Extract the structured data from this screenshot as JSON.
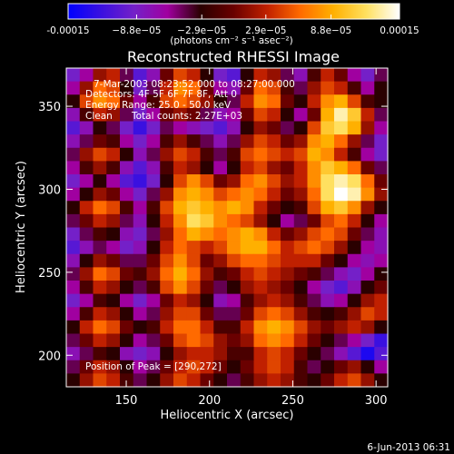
{
  "chart_data": {
    "type": "heatmap",
    "title": "Reconstructed RHESSI Image",
    "xlabel": "Heliocentric X (arcsec)",
    "ylabel": "Heliocentric Y (arcsec)",
    "xlim": [
      114,
      307
    ],
    "ylim": [
      181,
      373
    ],
    "x_ticks": [
      150,
      200,
      250,
      300
    ],
    "y_ticks": [
      200,
      250,
      300,
      350
    ],
    "colorbar": {
      "range": [
        -0.00015,
        0.00015
      ],
      "tick_values": [
        -0.00015,
        -8.8e-05,
        -2.9e-05,
        2.9e-05,
        8.8e-05,
        0.00015
      ],
      "tick_labels": [
        "-0.00015",
        "−8.8e−05",
        "−2.9e−05",
        "2.9e−05",
        "8.8e−05",
        "0.00015"
      ],
      "units": "(photons cm⁻² s⁻¹ asec⁻²)",
      "stops": [
        "#0000ff",
        "#3a10e0",
        "#7420c8",
        "#a000a0",
        "#2a0000",
        "#6a0000",
        "#c02000",
        "#ff6a00",
        "#ffb000",
        "#ffe060",
        "#ffffff"
      ]
    },
    "annotations": {
      "time": "7-Mar-2003 08:23:52.000 to 08:27:00.000",
      "detectors": "Detectors: 4F 5F 6F 7F 8F, Att 0",
      "energy": "Energy Range: 25.0 - 50.0 keV",
      "method": "Clean",
      "counts": "Total counts: 2.27E+03",
      "peak": "Position of Peak = [290,272]"
    },
    "peak_position": [
      290,
      272
    ],
    "grid_size": [
      24,
      24
    ],
    "values_scale": "fraction of colorbar range (-1 to 1)",
    "values": [
      [
        -0.6,
        -0.4,
        0.1,
        0.2,
        -0.3,
        -0.7,
        -0.5,
        0.0,
        0.3,
        0.2,
        -0.2,
        -0.6,
        -0.7,
        -0.2,
        0.2,
        0.1,
        -0.3,
        -0.5,
        -0.1,
        0.2,
        0.0,
        -0.4,
        -0.6,
        -0.3
      ],
      [
        -0.4,
        0.1,
        0.4,
        0.3,
        -0.2,
        -0.6,
        -0.3,
        0.2,
        0.5,
        0.4,
        0.0,
        -0.4,
        -0.5,
        0.0,
        0.4,
        0.3,
        -0.1,
        -0.3,
        0.1,
        0.3,
        0.2,
        -0.1,
        -0.4,
        -0.2
      ],
      [
        -0.2,
        0.3,
        0.5,
        0.4,
        0.0,
        -0.4,
        -0.1,
        0.3,
        0.4,
        0.3,
        0.1,
        -0.2,
        -0.3,
        0.2,
        0.5,
        0.4,
        0.0,
        -0.2,
        0.2,
        0.5,
        0.6,
        0.3,
        -0.1,
        -0.2
      ],
      [
        -0.5,
        -0.1,
        0.2,
        0.1,
        -0.3,
        -0.6,
        -0.4,
        0.0,
        0.1,
        0.0,
        -0.3,
        -0.5,
        -0.4,
        0.0,
        0.3,
        0.2,
        -0.2,
        -0.4,
        0.0,
        0.6,
        0.9,
        0.7,
        0.2,
        -0.3
      ],
      [
        -0.7,
        -0.5,
        -0.2,
        -0.3,
        -0.6,
        -0.8,
        -0.6,
        -0.3,
        -0.4,
        -0.5,
        -0.6,
        -0.7,
        -0.5,
        -0.2,
        0.1,
        0.0,
        -0.3,
        -0.2,
        0.3,
        0.7,
        0.8,
        0.6,
        0.1,
        -0.4
      ],
      [
        -0.5,
        -0.3,
        0.0,
        -0.1,
        -0.4,
        -0.6,
        -0.4,
        -0.1,
        0.1,
        -0.1,
        -0.3,
        -0.5,
        -0.3,
        0.1,
        0.3,
        0.2,
        0.0,
        0.1,
        0.5,
        0.6,
        0.4,
        0.1,
        -0.3,
        -0.6
      ],
      [
        -0.3,
        0.1,
        0.3,
        0.2,
        -0.2,
        -0.5,
        -0.3,
        0.1,
        0.3,
        0.2,
        -0.1,
        -0.3,
        -0.1,
        0.3,
        0.4,
        0.3,
        0.2,
        0.3,
        0.6,
        0.5,
        0.2,
        -0.1,
        -0.4,
        -0.6
      ],
      [
        -0.4,
        -0.1,
        0.1,
        -0.1,
        -0.5,
        -0.7,
        -0.5,
        -0.1,
        0.2,
        0.1,
        -0.2,
        -0.4,
        -0.2,
        0.2,
        0.3,
        0.1,
        0.0,
        0.2,
        0.5,
        0.7,
        0.6,
        0.4,
        0.0,
        -0.3
      ],
      [
        -0.6,
        -0.4,
        -0.2,
        -0.4,
        -0.7,
        -0.8,
        -0.6,
        -0.2,
        0.3,
        0.5,
        0.3,
        0.0,
        0.1,
        0.4,
        0.5,
        0.3,
        0.1,
        0.2,
        0.5,
        0.8,
        0.9,
        0.8,
        0.4,
        0.0
      ],
      [
        -0.4,
        -0.2,
        0.1,
        0.0,
        -0.4,
        -0.6,
        -0.3,
        0.1,
        0.5,
        0.6,
        0.5,
        0.3,
        0.4,
        0.5,
        0.4,
        0.2,
        0.0,
        0.1,
        0.4,
        0.8,
        1.0,
        0.9,
        0.5,
        0.1
      ],
      [
        -0.2,
        0.2,
        0.4,
        0.3,
        -0.1,
        -0.4,
        -0.1,
        0.3,
        0.6,
        0.7,
        0.6,
        0.5,
        0.6,
        0.5,
        0.2,
        0.0,
        -0.2,
        -0.1,
        0.3,
        0.6,
        0.7,
        0.5,
        0.1,
        -0.2
      ],
      [
        -0.3,
        0.0,
        0.2,
        0.1,
        -0.3,
        -0.5,
        -0.2,
        0.2,
        0.5,
        0.8,
        0.7,
        0.5,
        0.4,
        0.3,
        0.1,
        -0.2,
        -0.4,
        -0.3,
        0.0,
        0.3,
        0.4,
        0.2,
        -0.2,
        -0.4
      ],
      [
        -0.6,
        -0.3,
        -0.1,
        -0.2,
        -0.5,
        -0.6,
        -0.3,
        0.1,
        0.4,
        0.6,
        0.5,
        0.4,
        0.5,
        0.6,
        0.5,
        0.2,
        0.0,
        0.1,
        0.3,
        0.4,
        0.3,
        0.0,
        -0.3,
        -0.5
      ],
      [
        -0.7,
        -0.5,
        -0.3,
        -0.4,
        -0.6,
        -0.5,
        -0.2,
        0.2,
        0.4,
        0.3,
        0.2,
        0.3,
        0.5,
        0.6,
        0.6,
        0.4,
        0.2,
        0.3,
        0.4,
        0.3,
        0.1,
        -0.2,
        -0.4,
        -0.5
      ],
      [
        -0.5,
        -0.2,
        0.1,
        0.0,
        -0.3,
        -0.3,
        0.0,
        0.3,
        0.5,
        0.3,
        0.0,
        0.1,
        0.3,
        0.4,
        0.4,
        0.3,
        0.2,
        0.2,
        0.2,
        0.0,
        -0.2,
        -0.4,
        -0.5,
        -0.4
      ],
      [
        -0.3,
        0.1,
        0.4,
        0.3,
        0.0,
        -0.1,
        0.1,
        0.4,
        0.6,
        0.4,
        0.1,
        -0.1,
        0.0,
        0.2,
        0.3,
        0.2,
        0.1,
        0.0,
        -0.1,
        -0.3,
        -0.5,
        -0.6,
        -0.4,
        -0.2
      ],
      [
        -0.4,
        -0.1,
        0.2,
        0.1,
        -0.2,
        -0.3,
        -0.1,
        0.3,
        0.5,
        0.3,
        0.0,
        -0.3,
        -0.2,
        0.1,
        0.2,
        0.1,
        0.0,
        -0.2,
        -0.4,
        -0.6,
        -0.7,
        -0.5,
        -0.2,
        0.0
      ],
      [
        -0.6,
        -0.4,
        -0.1,
        -0.2,
        -0.4,
        -0.6,
        -0.4,
        0.0,
        0.2,
        0.1,
        -0.2,
        -0.5,
        -0.4,
        -0.1,
        0.1,
        0.2,
        0.1,
        -0.1,
        -0.3,
        -0.5,
        -0.4,
        -0.2,
        0.1,
        0.2
      ],
      [
        -0.4,
        -0.1,
        0.2,
        0.1,
        -0.2,
        -0.4,
        -0.3,
        0.1,
        0.3,
        0.3,
        0.0,
        -0.3,
        -0.3,
        0.0,
        0.3,
        0.4,
        0.3,
        0.1,
        -0.1,
        -0.2,
        -0.1,
        0.1,
        0.3,
        0.2
      ],
      [
        -0.2,
        0.2,
        0.4,
        0.3,
        0.0,
        -0.2,
        -0.1,
        0.2,
        0.4,
        0.4,
        0.2,
        -0.1,
        -0.1,
        0.2,
        0.5,
        0.6,
        0.5,
        0.3,
        0.1,
        0.0,
        0.1,
        0.2,
        0.1,
        -0.2
      ],
      [
        -0.3,
        0.0,
        0.2,
        0.1,
        -0.2,
        -0.4,
        -0.3,
        0.0,
        0.3,
        0.4,
        0.3,
        0.1,
        0.0,
        0.1,
        0.4,
        0.5,
        0.4,
        0.2,
        0.0,
        -0.2,
        -0.3,
        -0.4,
        -0.6,
        -0.8
      ],
      [
        -0.5,
        -0.3,
        -0.1,
        -0.2,
        -0.5,
        -0.6,
        -0.5,
        -0.2,
        0.1,
        0.2,
        0.2,
        0.1,
        -0.1,
        -0.1,
        0.2,
        0.3,
        0.2,
        0.0,
        -0.2,
        -0.3,
        -0.5,
        -0.7,
        -0.9,
        -0.7
      ],
      [
        -0.3,
        0.0,
        0.2,
        0.1,
        -0.2,
        -0.4,
        -0.3,
        0.0,
        0.2,
        0.3,
        0.2,
        0.0,
        -0.2,
        0.0,
        0.2,
        0.3,
        0.2,
        -0.1,
        -0.3,
        -0.2,
        0.0,
        0.1,
        -0.2,
        -0.4
      ],
      [
        -0.2,
        0.1,
        0.3,
        0.2,
        -0.1,
        -0.3,
        -0.2,
        0.1,
        0.3,
        0.2,
        0.0,
        -0.2,
        -0.3,
        -0.1,
        0.1,
        0.2,
        0.1,
        -0.1,
        -0.2,
        0.0,
        0.2,
        0.3,
        0.1,
        -0.2
      ]
    ]
  },
  "footer": {
    "timestamp": "6-Jun-2013 06:31"
  }
}
